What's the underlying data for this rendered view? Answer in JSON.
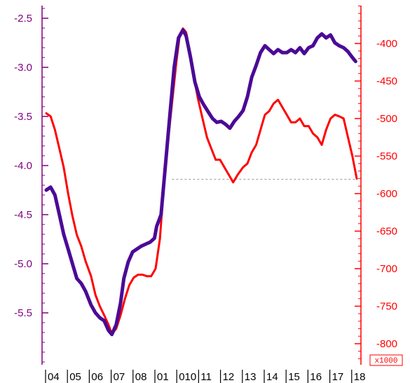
{
  "chart_data": {
    "type": "line",
    "title": "",
    "colors": {
      "left_axis": "#800080",
      "right_axis": "#ff0000",
      "series_purple": "#4b0a96",
      "series_red": "#ff0000",
      "reference_line": "#999999"
    },
    "x_axis": {
      "range": [
        2003.5,
        2018.0
      ],
      "labels": [
        {
          "text": "04",
          "value": 2004
        },
        {
          "text": "05",
          "value": 2005
        },
        {
          "text": "06",
          "value": 2006
        },
        {
          "text": "07",
          "value": 2007
        },
        {
          "text": "08",
          "value": 2008
        },
        {
          "text": "01",
          "value": 2009
        },
        {
          "text": "010",
          "value": 2010
        },
        {
          "text": "11",
          "value": 2011
        },
        {
          "text": "12",
          "value": 2012
        },
        {
          "text": "13",
          "value": 2013
        },
        {
          "text": "14",
          "value": 2014
        },
        {
          "text": "15",
          "value": 2015
        },
        {
          "text": "16",
          "value": 2016
        },
        {
          "text": "17",
          "value": 2017
        },
        {
          "text": "18",
          "value": 2018
        }
      ]
    },
    "left_axis": {
      "range": [
        -6.0,
        -2.4
      ],
      "ticks": [
        {
          "text": "-2.5",
          "value": -2.5
        },
        {
          "text": "-3.0",
          "value": -3.0
        },
        {
          "text": "-3.5",
          "value": -3.5
        },
        {
          "text": "-4.0",
          "value": -4.0
        },
        {
          "text": "-4.5",
          "value": -4.5
        },
        {
          "text": "-5.0",
          "value": -5.0
        },
        {
          "text": "-5.5",
          "value": -5.5
        }
      ]
    },
    "right_axis": {
      "range": [
        -840,
        -350
      ],
      "ticks": [
        {
          "text": "-400",
          "value": -400
        },
        {
          "text": "-450",
          "value": -450
        },
        {
          "text": "-500",
          "value": -500
        },
        {
          "text": "-550",
          "value": -550
        },
        {
          "text": "-600",
          "value": -600
        },
        {
          "text": "-650",
          "value": -650
        },
        {
          "text": "-700",
          "value": -700
        },
        {
          "text": "-750",
          "value": -750
        },
        {
          "text": "-800",
          "value": -800
        }
      ],
      "multiplier_label": "x1000"
    },
    "reference_line": {
      "axis": "left",
      "value": -4.14,
      "x_start": 2009.3,
      "x_end": 2017.8
    },
    "series": [
      {
        "axis": "left",
        "color_key": "series_purple",
        "x": [
          2003.55,
          2003.75,
          2003.95,
          2004.15,
          2004.35,
          2004.55,
          2004.75,
          2004.95,
          2005.15,
          2005.35,
          2005.6,
          2005.8,
          2006.0,
          2006.2,
          2006.4,
          2006.55,
          2006.75,
          2006.95,
          2007.1,
          2007.3,
          2007.5,
          2007.7,
          2007.9,
          2008.1,
          2008.3,
          2008.5,
          2008.6,
          2008.8,
          2009.0,
          2009.2,
          2009.4,
          2009.6,
          2009.8,
          2009.95,
          2010.15,
          2010.35,
          2010.55,
          2010.75,
          2010.95,
          2011.15,
          2011.35,
          2011.55,
          2011.75,
          2011.95,
          2012.15,
          2012.35,
          2012.55,
          2012.75,
          2012.95,
          2013.15,
          2013.35,
          2013.55,
          2013.75,
          2013.95,
          2014.15,
          2014.35,
          2014.55,
          2014.75,
          2014.95,
          2015.15,
          2015.35,
          2015.55,
          2015.75,
          2015.95,
          2016.15,
          2016.35,
          2016.55,
          2016.75,
          2016.95,
          2017.15,
          2017.35,
          2017.55,
          2017.7
        ],
        "y": [
          -4.25,
          -4.22,
          -4.3,
          -4.5,
          -4.7,
          -4.85,
          -5.0,
          -5.15,
          -5.2,
          -5.28,
          -5.42,
          -5.5,
          -5.55,
          -5.58,
          -5.68,
          -5.72,
          -5.62,
          -5.4,
          -5.15,
          -4.98,
          -4.88,
          -4.85,
          -4.82,
          -4.8,
          -4.78,
          -4.74,
          -4.62,
          -4.5,
          -4.0,
          -3.5,
          -3.0,
          -2.7,
          -2.62,
          -2.68,
          -2.9,
          -3.15,
          -3.3,
          -3.38,
          -3.45,
          -3.52,
          -3.56,
          -3.55,
          -3.58,
          -3.62,
          -3.55,
          -3.5,
          -3.44,
          -3.3,
          -3.1,
          -2.98,
          -2.85,
          -2.78,
          -2.82,
          -2.86,
          -2.82,
          -2.85,
          -2.85,
          -2.82,
          -2.85,
          -2.8,
          -2.86,
          -2.8,
          -2.78,
          -2.7,
          -2.66,
          -2.7,
          -2.67,
          -2.75,
          -2.78,
          -2.8,
          -2.84,
          -2.9,
          -2.94
        ]
      },
      {
        "axis": "right",
        "color_key": "series_red",
        "x": [
          2003.55,
          2003.75,
          2003.95,
          2004.15,
          2004.35,
          2004.55,
          2004.75,
          2004.95,
          2005.15,
          2005.35,
          2005.6,
          2005.8,
          2006.0,
          2006.2,
          2006.4,
          2006.55,
          2006.75,
          2006.95,
          2007.15,
          2007.35,
          2007.55,
          2007.75,
          2007.95,
          2008.15,
          2008.35,
          2008.55,
          2008.75,
          2008.9,
          2009.1,
          2009.3,
          2009.5,
          2009.65,
          2009.8,
          2009.95,
          2010.1,
          2010.3,
          2010.5,
          2010.7,
          2010.9,
          2011.1,
          2011.3,
          2011.5,
          2011.7,
          2011.9,
          2012.1,
          2012.3,
          2012.55,
          2012.75,
          2012.95,
          2013.15,
          2013.35,
          2013.55,
          2013.75,
          2013.95,
          2014.15,
          2014.35,
          2014.55,
          2014.75,
          2014.95,
          2015.15,
          2015.35,
          2015.55,
          2015.75,
          2015.95,
          2016.15,
          2016.35,
          2016.55,
          2016.75,
          2016.95,
          2017.15,
          2017.35,
          2017.55,
          2017.75
        ],
        "y": [
          -493,
          -497,
          -515,
          -540,
          -565,
          -600,
          -630,
          -655,
          -670,
          -690,
          -710,
          -735,
          -750,
          -762,
          -775,
          -787,
          -780,
          -762,
          -740,
          -722,
          -712,
          -708,
          -708,
          -710,
          -710,
          -700,
          -660,
          -600,
          -535,
          -480,
          -425,
          -390,
          -380,
          -385,
          -410,
          -445,
          -475,
          -500,
          -525,
          -540,
          -555,
          -555,
          -565,
          -575,
          -585,
          -575,
          -565,
          -560,
          -545,
          -535,
          -515,
          -495,
          -490,
          -480,
          -475,
          -485,
          -495,
          -505,
          -505,
          -500,
          -510,
          -510,
          -520,
          -525,
          -535,
          -515,
          -500,
          -495,
          -497,
          -500,
          -525,
          -550,
          -580
        ]
      }
    ]
  }
}
